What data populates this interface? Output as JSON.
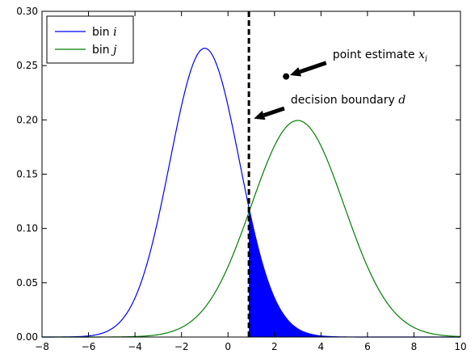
{
  "chart_data": {
    "type": "line",
    "xlim": [
      -8,
      10
    ],
    "ylim": [
      0,
      0.3
    ],
    "x_ticks": [
      -8,
      -6,
      -4,
      -2,
      0,
      2,
      4,
      6,
      8,
      10
    ],
    "y_ticks": [
      0.0,
      0.05,
      0.1,
      0.15,
      0.2,
      0.25,
      0.3
    ],
    "x_tick_labels": [
      "−8",
      "−6",
      "−4",
      "−2",
      "0",
      "2",
      "4",
      "6",
      "8",
      "10"
    ],
    "y_tick_labels": [
      "0.00",
      "0.05",
      "0.10",
      "0.15",
      "0.20",
      "0.25",
      "0.30"
    ],
    "grid": false,
    "legend_position": "top-left",
    "series": [
      {
        "name": "bin i",
        "name_text": "bin ",
        "name_math": "i",
        "color": "#0000ff",
        "distribution": "normal",
        "mean": -1,
        "std": 1.5,
        "peak": 0.266
      },
      {
        "name": "bin j",
        "name_text": "bin ",
        "name_math": "j",
        "color": "#008000",
        "distribution": "normal",
        "mean": 3,
        "std": 2,
        "peak": 0.199
      }
    ],
    "decision_boundary": {
      "x": 0.9,
      "color": "#000000",
      "style": "dashed"
    },
    "shaded_region": {
      "series": "bin i",
      "from_x": 0.9,
      "to_x": 10,
      "color": "#0000ff"
    },
    "point": {
      "x": 2.5,
      "y": 0.24,
      "color": "#000000"
    },
    "annotations": [
      {
        "id": "point",
        "text": "point estimate ",
        "math": "x",
        "math_sub": "i",
        "target": [
          2.5,
          0.24
        ],
        "text_at": [
          4.5,
          0.257
        ]
      },
      {
        "id": "boundary",
        "text": "decision boundary ",
        "math": "d",
        "target": [
          0.95,
          0.2
        ],
        "text_at": [
          2.7,
          0.215
        ]
      }
    ]
  }
}
